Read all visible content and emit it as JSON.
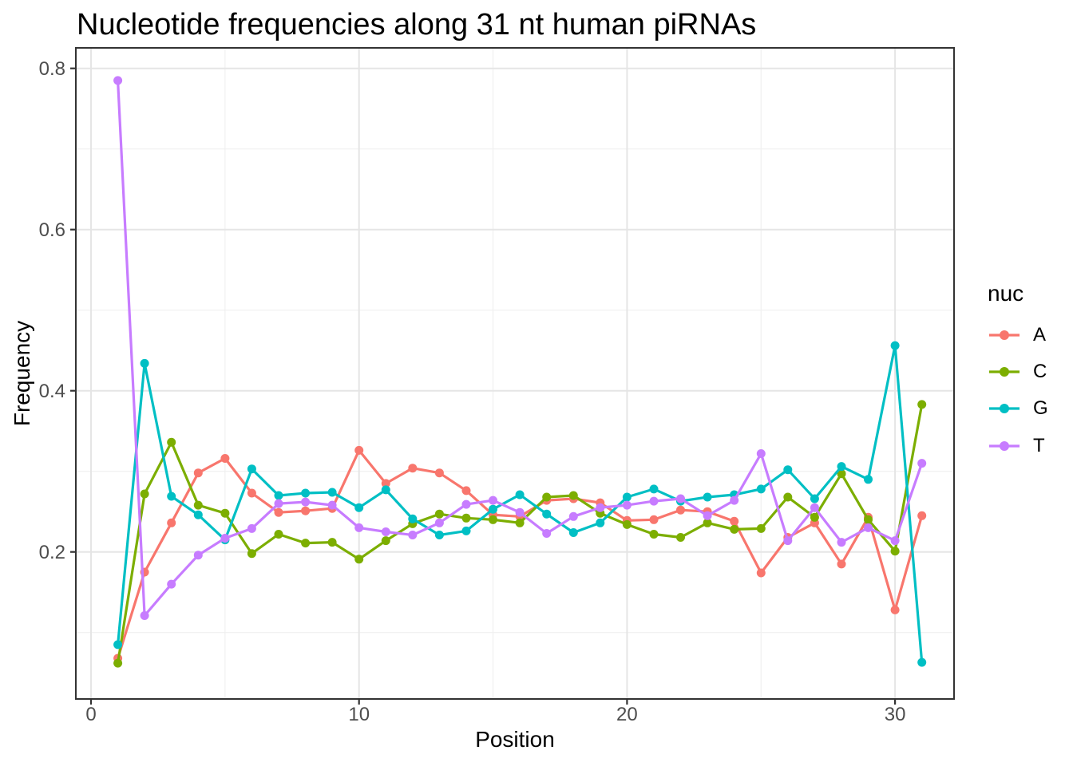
{
  "title": "Nucleotide frequencies along 31 nt human piRNAs",
  "chart_data": {
    "type": "line",
    "title": "Nucleotide frequencies along 31 nt human piRNAs",
    "xlabel": "Position",
    "ylabel": "Frequency",
    "legend_title": "nuc",
    "legend_position": "right",
    "grid": true,
    "xlim": [
      -0.6,
      32.3
    ],
    "ylim": [
      0.017,
      0.825
    ],
    "x_ticks": [
      0,
      10,
      20,
      30
    ],
    "x_tick_labels": [
      "0",
      "10",
      "20",
      "30"
    ],
    "x_minor_ticks": [
      5,
      15,
      25
    ],
    "y_ticks": [
      0.2,
      0.4,
      0.6,
      0.8
    ],
    "y_tick_labels": [
      "0.2",
      "0.4",
      "0.6",
      "0.8"
    ],
    "y_minor_ticks": [
      0.1,
      0.3,
      0.5,
      0.7
    ],
    "x": [
      1,
      2,
      3,
      4,
      5,
      6,
      7,
      8,
      9,
      10,
      11,
      12,
      13,
      14,
      15,
      16,
      17,
      18,
      19,
      20,
      21,
      22,
      23,
      24,
      25,
      26,
      27,
      28,
      29,
      30,
      31
    ],
    "series": [
      {
        "name": "A",
        "color": "#F8766D",
        "values": [
          0.068,
          0.175,
          0.236,
          0.298,
          0.316,
          0.273,
          0.249,
          0.251,
          0.254,
          0.326,
          0.285,
          0.304,
          0.298,
          0.276,
          0.246,
          0.244,
          0.264,
          0.266,
          0.261,
          0.239,
          0.24,
          0.252,
          0.25,
          0.238,
          0.174,
          0.218,
          0.236,
          0.185,
          0.243,
          0.128,
          0.245
        ]
      },
      {
        "name": "C",
        "color": "#7CAE00",
        "values": [
          0.062,
          0.272,
          0.336,
          0.258,
          0.248,
          0.198,
          0.222,
          0.211,
          0.212,
          0.191,
          0.214,
          0.235,
          0.247,
          0.242,
          0.24,
          0.236,
          0.268,
          0.27,
          0.248,
          0.234,
          0.222,
          0.218,
          0.236,
          0.228,
          0.229,
          0.268,
          0.243,
          0.297,
          0.24,
          0.201,
          0.383
        ]
      },
      {
        "name": "G",
        "color": "#00BFC4",
        "values": [
          0.085,
          0.434,
          0.269,
          0.246,
          0.215,
          0.303,
          0.27,
          0.273,
          0.274,
          0.255,
          0.277,
          0.241,
          0.221,
          0.226,
          0.253,
          0.271,
          0.247,
          0.224,
          0.236,
          0.268,
          0.278,
          0.263,
          0.268,
          0.271,
          0.278,
          0.302,
          0.266,
          0.306,
          0.29,
          0.456,
          0.063
        ]
      },
      {
        "name": "T",
        "color": "#C77CFF",
        "values": [
          0.785,
          0.121,
          0.16,
          0.196,
          0.217,
          0.229,
          0.26,
          0.262,
          0.258,
          0.23,
          0.225,
          0.221,
          0.236,
          0.259,
          0.264,
          0.249,
          0.223,
          0.244,
          0.255,
          0.258,
          0.263,
          0.266,
          0.245,
          0.264,
          0.322,
          0.214,
          0.255,
          0.212,
          0.23,
          0.214,
          0.31
        ]
      }
    ],
    "style": {
      "panel_border_color": "#333333",
      "grid_major_color": "#e5e5e5",
      "grid_minor_color": "#f0f0f0",
      "tick_color": "#333333",
      "tick_label_color": "#4d4d4d",
      "background": "#ffffff"
    }
  }
}
